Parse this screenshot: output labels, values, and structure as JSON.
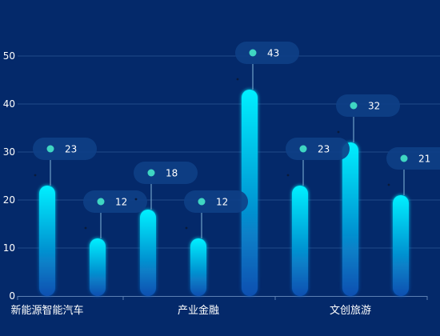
{
  "colors": {
    "background": "#04296a",
    "grid": "#1f4a8a",
    "bar_top": "#00f0ff",
    "bar_bottom": "#0a4fb0",
    "pill": "#0e3f86",
    "dot": "#3fd6c2",
    "stem": "#6fa0c8",
    "text": "#ffffff"
  },
  "chart_data": {
    "type": "bar",
    "grid": true,
    "ylim": [
      0,
      55
    ],
    "yticks": [
      "0",
      "10",
      "20",
      "30",
      "40",
      "50"
    ],
    "ytick_values": [
      0,
      10,
      20,
      30,
      40,
      50
    ],
    "groups": [
      {
        "label": "新能源智能汽车",
        "values": [
          23,
          12
        ]
      },
      {
        "label": "产业金融",
        "values": [
          18,
          12,
          43
        ]
      },
      {
        "label": "文创旅游",
        "values": [
          23,
          32,
          21
        ]
      }
    ],
    "values": [
      23,
      12,
      18,
      12,
      43,
      23,
      32,
      21
    ]
  }
}
